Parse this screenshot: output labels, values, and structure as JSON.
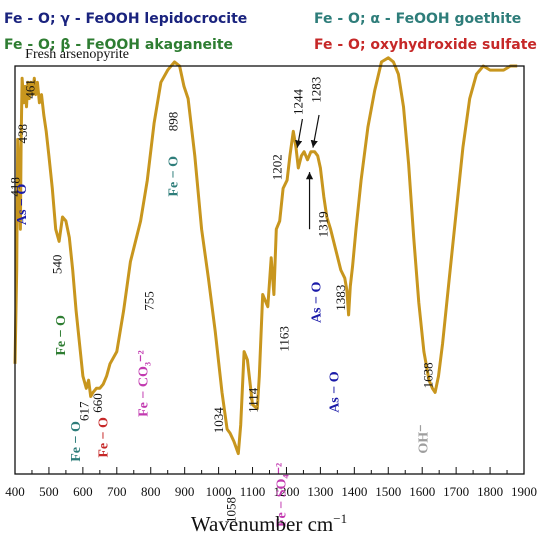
{
  "legend": [
    {
      "text": "Fe - O; γ - FeOOH lepidocrocite",
      "color": "#1a237e"
    },
    {
      "text": "Fe - O; α - FeOOH goethite",
      "color": "#2e7d7a"
    },
    {
      "text": "Fe - O; β - FeOOH akaganeite",
      "color": "#2e7d32"
    },
    {
      "text": "Fe - O; oxyhydroxide sulfate",
      "color": "#c62828"
    }
  ],
  "chart_data": {
    "type": "line",
    "xlabel": "Wavenumber cm",
    "xlabel_sup": "−1",
    "xlim": [
      400,
      1900
    ],
    "xticks": [
      400,
      500,
      600,
      700,
      800,
      900,
      1000,
      1100,
      1200,
      1300,
      1400,
      1500,
      1600,
      1700,
      1800,
      1900
    ],
    "ylim": [
      0,
      100
    ],
    "line_color": "#c8961e",
    "series": [
      {
        "x": [
          400,
          405,
          408,
          412,
          416,
          418,
          421,
          426,
          430,
          434,
          438,
          442,
          447,
          452,
          457,
          461,
          466,
          472,
          478,
          485,
          492,
          500,
          510,
          520,
          530,
          540,
          550,
          560,
          570,
          580,
          590,
          600,
          610,
          617,
          623,
          630,
          640,
          650,
          660,
          670,
          680,
          700,
          720,
          740,
          755,
          770,
          790,
          810,
          830,
          850,
          870,
          885,
          898,
          910,
          930,
          950,
          970,
          990,
          1010,
          1025,
          1034,
          1045,
          1058,
          1065,
          1075,
          1085,
          1100,
          1114,
          1120,
          1130,
          1145,
          1155,
          1163,
          1170,
          1180,
          1190,
          1202,
          1210,
          1220,
          1228,
          1235,
          1244,
          1252,
          1262,
          1272,
          1283,
          1292,
          1300,
          1310,
          1319,
          1330,
          1345,
          1360,
          1372,
          1378,
          1383,
          1388,
          1395,
          1405,
          1420,
          1440,
          1460,
          1480,
          1500,
          1515,
          1530,
          1545,
          1560,
          1575,
          1590,
          1605,
          1620,
          1630,
          1638,
          1648,
          1660,
          1680,
          1700,
          1720,
          1740,
          1760,
          1780,
          1800,
          1820,
          1840,
          1860,
          1880
        ],
        "y": [
          27,
          50,
          82,
          73,
          60,
          81,
          97,
          91,
          95,
          90,
          96,
          92,
          96,
          93,
          97,
          93,
          96,
          91,
          93,
          88,
          84,
          78,
          70,
          60,
          57,
          63,
          62,
          58,
          50,
          40,
          32,
          24,
          21,
          23,
          19,
          20,
          21,
          21,
          22,
          24,
          27,
          30,
          40,
          52,
          57,
          62,
          72,
          86,
          96,
          99,
          101,
          100,
          95,
          92,
          78,
          60,
          48,
          35,
          20,
          11,
          10,
          8,
          5,
          12,
          30,
          28,
          17,
          16,
          24,
          44,
          41,
          53,
          44,
          60,
          62,
          70,
          72,
          78,
          84,
          80,
          75,
          78,
          79,
          77,
          79,
          79,
          78,
          75,
          68,
          63,
          60,
          55,
          50,
          48,
          45,
          39,
          46,
          51,
          60,
          72,
          85,
          94,
          101,
          102,
          101,
          98,
          90,
          76,
          58,
          42,
          30,
          23,
          21,
          20,
          24,
          32,
          48,
          64,
          80,
          92,
          98,
          100,
          99,
          99,
          99,
          100,
          100
        ]
      }
    ],
    "annotations": [
      {
        "text": "Fresh arsenopyrite",
        "x": 430,
        "y": 102,
        "rotate": 0,
        "color": "#111111",
        "bold": false,
        "size": 14
      },
      {
        "text": "418",
        "x": 413,
        "y": 68,
        "rotate": -90,
        "color": "#111111",
        "bold": false,
        "size": 13
      },
      {
        "text": "438",
        "x": 435,
        "y": 81,
        "rotate": -90,
        "color": "#111111",
        "bold": false,
        "size": 13
      },
      {
        "text": "461",
        "x": 457,
        "y": 92,
        "rotate": -90,
        "color": "#111111",
        "bold": false,
        "size": 13
      },
      {
        "text": "As − O",
        "x": 432,
        "y": 61,
        "rotate": -90,
        "color": "#1a1aa8",
        "bold": true,
        "size": 14
      },
      {
        "text": "540",
        "x": 537,
        "y": 49,
        "rotate": -90,
        "color": "#111111",
        "bold": false,
        "size": 13
      },
      {
        "text": "Fe − O",
        "x": 547,
        "y": 29,
        "rotate": -90,
        "color": "#2e7d32",
        "bold": true,
        "size": 14
      },
      {
        "text": "Fe − O",
        "x": 592,
        "y": 3,
        "rotate": -90,
        "color": "#2e7d7a",
        "bold": true,
        "size": 14
      },
      {
        "text": "617",
        "x": 616,
        "y": 13,
        "rotate": -90,
        "color": "#111111",
        "bold": false,
        "size": 13
      },
      {
        "text": "Fe − O",
        "x": 672,
        "y": 4,
        "rotate": -90,
        "color": "#c62828",
        "bold": true,
        "size": 14
      },
      {
        "text": "660",
        "x": 656,
        "y": 15,
        "rotate": -90,
        "color": "#111111",
        "bold": false,
        "size": 13
      },
      {
        "text": "Fe − CO₃⁻²",
        "x": 790,
        "y": 14,
        "rotate": -90,
        "color": "#c23ab0",
        "bold": true,
        "size": 14
      },
      {
        "text": "755",
        "x": 808,
        "y": 40,
        "rotate": -90,
        "color": "#111111",
        "bold": false,
        "size": 13
      },
      {
        "text": "Fe − O",
        "x": 879,
        "y": 68,
        "rotate": -90,
        "color": "#2e7d7a",
        "bold": true,
        "size": 14
      },
      {
        "text": "898",
        "x": 879,
        "y": 84,
        "rotate": -90,
        "color": "#111111",
        "bold": false,
        "size": 13
      },
      {
        "text": "1034",
        "x": 1013,
        "y": 10,
        "rotate": -90,
        "color": "#111111",
        "bold": false,
        "size": 13
      },
      {
        "text": "1058",
        "x": 1050,
        "y": -12,
        "rotate": -90,
        "color": "#111111",
        "bold": false,
        "size": 13
      },
      {
        "text": "1114",
        "x": 1115,
        "y": 15,
        "rotate": -90,
        "color": "#111111",
        "bold": false,
        "size": 13
      },
      {
        "text": "Fe − SO₄⁻²",
        "x": 1197,
        "y": -13,
        "rotate": -90,
        "color": "#c23ab0",
        "bold": true,
        "size": 14
      },
      {
        "text": "1163",
        "x": 1206,
        "y": 30,
        "rotate": -90,
        "color": "#111111",
        "bold": false,
        "size": 13
      },
      {
        "text": "1202",
        "x": 1185,
        "y": 72,
        "rotate": -90,
        "color": "#111111",
        "bold": false,
        "size": 13
      },
      {
        "text": "1244",
        "x": 1248,
        "y": 88,
        "rotate": -90,
        "color": "#111111",
        "bold": false,
        "size": 13
      },
      {
        "text": "1283",
        "x": 1300,
        "y": 91,
        "rotate": -90,
        "color": "#111111",
        "bold": false,
        "size": 13
      },
      {
        "text": "As − O",
        "x": 1300,
        "y": 37,
        "rotate": -90,
        "color": "#1a1aa8",
        "bold": true,
        "size": 14
      },
      {
        "text": "1319",
        "x": 1321,
        "y": 58,
        "rotate": -90,
        "color": "#111111",
        "bold": false,
        "size": 13
      },
      {
        "text": "As − O",
        "x": 1353,
        "y": 15,
        "rotate": -90,
        "color": "#1a1aa8",
        "bold": true,
        "size": 14
      },
      {
        "text": "1383",
        "x": 1372,
        "y": 40,
        "rotate": -90,
        "color": "#111111",
        "bold": false,
        "size": 13
      },
      {
        "text": "OH⁻",
        "x": 1615,
        "y": 5,
        "rotate": -90,
        "color": "#9e9e9e",
        "bold": true,
        "size": 14
      },
      {
        "text": "1638",
        "x": 1631,
        "y": 21,
        "rotate": -90,
        "color": "#111111",
        "bold": false,
        "size": 13
      }
    ]
  }
}
